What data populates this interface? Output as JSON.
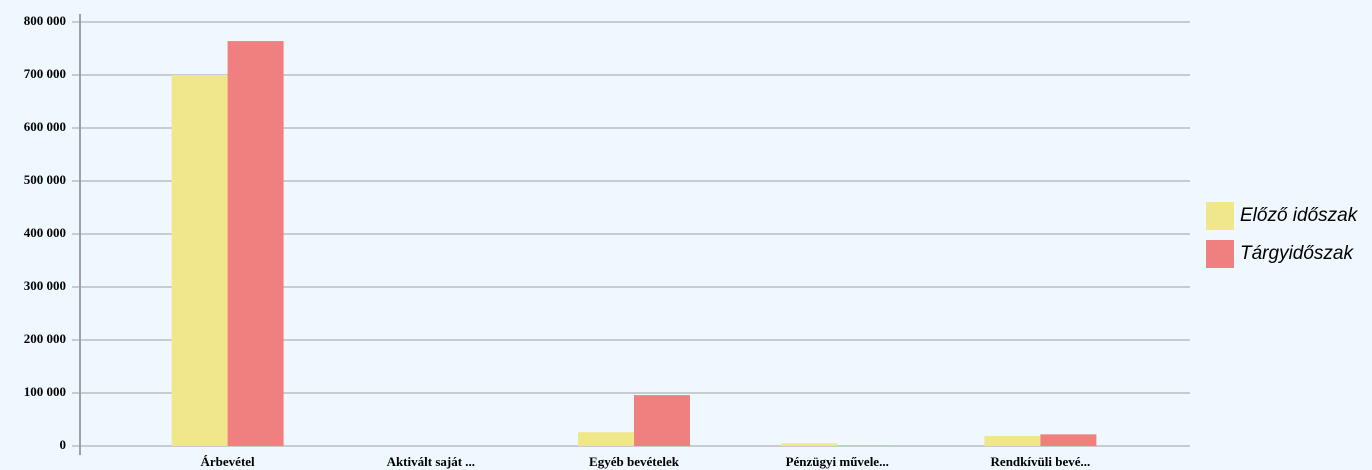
{
  "chart_data": {
    "type": "bar",
    "categories": [
      "Árbevétel",
      "Aktivált saját ...",
      "Egyéb bevételek",
      "Pénzügyi művele...",
      "Rendkívüli bevé..."
    ],
    "series": [
      {
        "name": "Előző időszak",
        "color": "#f0e68c",
        "values": [
          700000,
          0,
          26000,
          5000,
          19000
        ]
      },
      {
        "name": "Tárgyidőszak",
        "color": "#f08080",
        "values": [
          764000,
          0,
          96000,
          1000,
          22000
        ]
      }
    ],
    "ylim": [
      0,
      800000
    ],
    "yticks": [
      0,
      {
        "value": 100000,
        "label": "100 000"
      },
      {
        "value": 200000,
        "label": "200 000"
      },
      {
        "value": 300000,
        "label": "300 000"
      },
      {
        "value": 400000,
        "label": "400 000"
      },
      {
        "value": 500000,
        "label": "500 000"
      },
      {
        "value": 600000,
        "label": "600 000"
      },
      {
        "value": 700000,
        "label": "700 000"
      },
      {
        "value": 800000,
        "label": "800 000"
      }
    ],
    "grid": true,
    "legend": "right"
  }
}
